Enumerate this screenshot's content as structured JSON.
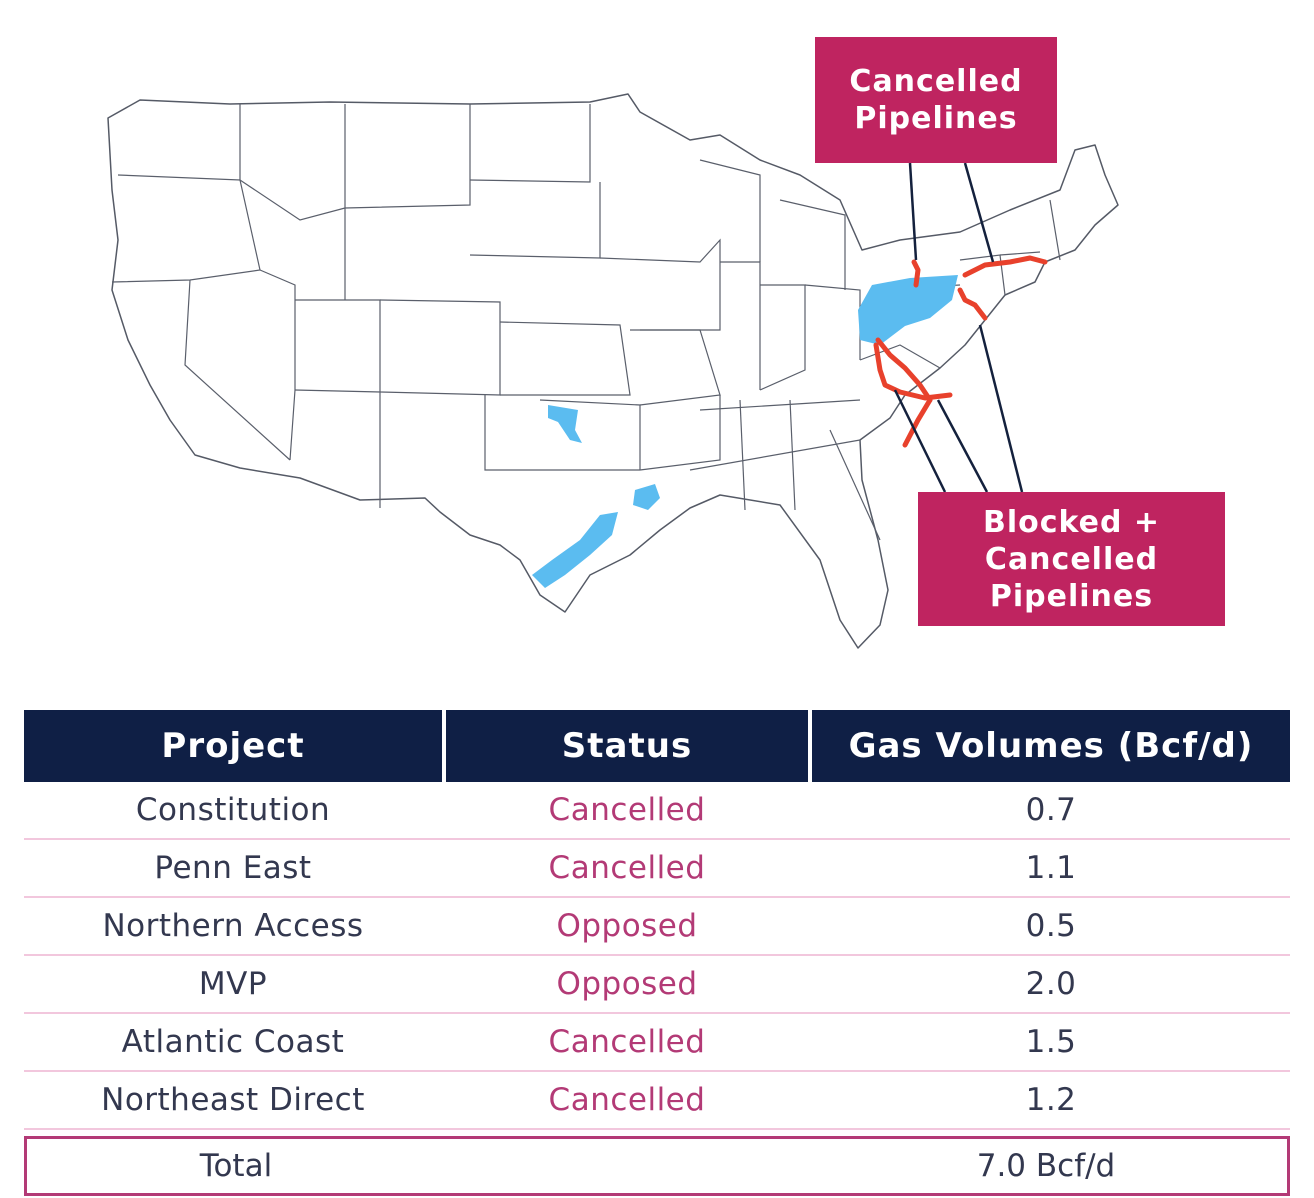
{
  "map": {
    "region": "United States",
    "colors": {
      "shale": "#5bbcf0",
      "pipeline": "#e8412c",
      "callout": "#bf2460",
      "leader": "#14213d"
    },
    "callouts": {
      "top": [
        "Cancelled",
        "Pipelines"
      ],
      "bottom": [
        "Blocked +",
        "Cancelled",
        "Pipelines"
      ]
    }
  },
  "table": {
    "headers": [
      "Project",
      "Status",
      "Gas Volumes (Bcf/d)"
    ],
    "rows": [
      {
        "project": "Constitution",
        "status": "Cancelled",
        "volume": "0.7"
      },
      {
        "project": "Penn East",
        "status": "Cancelled",
        "volume": "1.1"
      },
      {
        "project": "Northern Access",
        "status": "Opposed",
        "volume": "0.5"
      },
      {
        "project": "MVP",
        "status": "Opposed",
        "volume": "2.0"
      },
      {
        "project": "Atlantic Coast",
        "status": "Cancelled",
        "volume": "1.5"
      },
      {
        "project": "Northeast Direct",
        "status": "Cancelled",
        "volume": "1.2"
      }
    ],
    "total": {
      "label": "Total",
      "value": "7.0 Bcf/d"
    },
    "colors": {
      "header_bg": "#0f1f45",
      "status_text": "#b33a76",
      "row_divider": "#f2c7dd"
    }
  }
}
